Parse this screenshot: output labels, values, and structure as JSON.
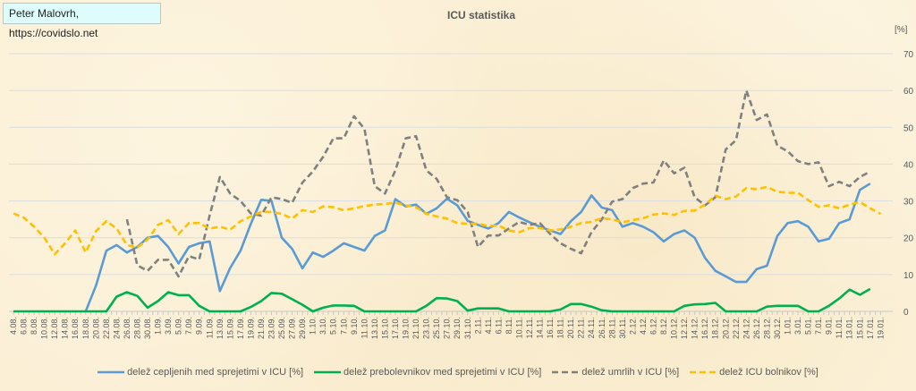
{
  "credit": "Peter Malovrh, https://covidslo.net",
  "chart_data": {
    "type": "line",
    "title": "ICU statistika",
    "ylabel": "[%]",
    "ylim": [
      0,
      70
    ],
    "yticks": [
      "0",
      "10",
      "20",
      "30",
      "40",
      "50",
      "60",
      "70"
    ],
    "y_axis_position": "right",
    "grid": "horizontal",
    "legend_position": "bottom",
    "categories": [
      "4.08.",
      "6.08.",
      "8.08.",
      "10.08.",
      "12.08.",
      "14.08.",
      "16.08.",
      "18.08.",
      "20.08.",
      "22.08.",
      "24.08.",
      "26.08.",
      "28.08.",
      "30.08.",
      "1.09.",
      "3.09.",
      "5.09.",
      "7.09.",
      "9.09.",
      "11.09.",
      "13.09.",
      "15.09.",
      "17.09.",
      "19.09.",
      "21.09.",
      "23.09.",
      "25.09.",
      "27.09.",
      "29.09.",
      "1.10.",
      "3.10.",
      "5.10.",
      "7.10.",
      "9.10.",
      "11.10.",
      "13.10.",
      "15.10.",
      "17.10.",
      "19.10.",
      "21.10.",
      "23.10.",
      "25.10.",
      "27.10.",
      "29.10.",
      "31.10.",
      "2.11.",
      "4.11.",
      "6.11.",
      "8.11.",
      "10.11.",
      "12.11.",
      "14.11.",
      "16.11.",
      "18.11.",
      "20.11.",
      "22.11.",
      "24.11.",
      "26.11.",
      "28.11.",
      "30.11.",
      "2.12.",
      "4.12.",
      "6.12.",
      "8.12.",
      "10.12.",
      "12.12.",
      "14.12.",
      "16.12.",
      "18.12.",
      "20.12.",
      "22.12.",
      "24.12.",
      "26.12.",
      "28.12.",
      "30.12.",
      "1.01.",
      "3.01.",
      "5.01.",
      "7.01.",
      "9.01.",
      "11.01.",
      "13.01.",
      "15.01.",
      "17.01.",
      "19.01."
    ],
    "series": [
      {
        "name": "delež cepljenih med sprejetimi v ICU [%]",
        "color": "#5b9bd5",
        "dash": false,
        "values": [
          null,
          null,
          null,
          null,
          null,
          null,
          null,
          0,
          7,
          16.5,
          18,
          16,
          17.5,
          20,
          20.5,
          17.5,
          13,
          17.5,
          18.5,
          19,
          5.5,
          11.8,
          16.5,
          23.8,
          30.3,
          30,
          20,
          17,
          11.7,
          16,
          14.8,
          16.5,
          18.5,
          17.5,
          16.5,
          20.5,
          22,
          30.5,
          28.5,
          29,
          26.5,
          28,
          30.6,
          28.8,
          24.6,
          23.5,
          22.5,
          24,
          27,
          25.5,
          24.2,
          23,
          22,
          21,
          24.5,
          27,
          31.5,
          28.2,
          27.5,
          23,
          24,
          23,
          21.5,
          19,
          21,
          22,
          20,
          14.5,
          11,
          9.5,
          8,
          8,
          11.5,
          12.4,
          20.5,
          24,
          24.5,
          23,
          19,
          19.7,
          24,
          25,
          33,
          34.7,
          null
        ]
      },
      {
        "name": "delež prebolevnikov med sprejetimi v ICU [%]",
        "color": "#00b050",
        "dash": false,
        "values": [
          0,
          0,
          0,
          0,
          0,
          0,
          0,
          0,
          0,
          0,
          4,
          5.2,
          4.2,
          1,
          2.8,
          5.2,
          4.4,
          4.4,
          1.5,
          0,
          0,
          0,
          0,
          1.2,
          2.8,
          5,
          4.8,
          3.3,
          1.8,
          0,
          1,
          1.6,
          1.6,
          1.5,
          0,
          0,
          0,
          0,
          0,
          0,
          1.5,
          3.6,
          3.5,
          2.8,
          0.2,
          0.8,
          0.8,
          0.8,
          0,
          0,
          0,
          0,
          0,
          0.5,
          2,
          2,
          1.3,
          0.3,
          0,
          0,
          0,
          0,
          0,
          0,
          0,
          1.5,
          1.9,
          2,
          2.3,
          0,
          0,
          0,
          0,
          1.3,
          1.5,
          1.5,
          1.5,
          0,
          0,
          1.5,
          3.5,
          5.9,
          4.5,
          6.1,
          null
        ]
      },
      {
        "name": "delež umrlih v ICU [%]",
        "color": "#808080",
        "dash": true,
        "values": [
          null,
          null,
          null,
          null,
          null,
          null,
          null,
          null,
          null,
          null,
          null,
          25,
          12.5,
          11,
          14,
          14,
          9.5,
          15,
          14.1,
          26,
          36.5,
          32,
          30,
          26.6,
          26,
          31,
          30.5,
          29.5,
          35,
          38,
          42,
          47,
          47,
          53,
          49.6,
          34,
          32,
          38.3,
          47,
          47.6,
          38.3,
          36,
          31,
          30.2,
          27,
          17.5,
          20.6,
          20.6,
          22.5,
          24.3,
          23.5,
          24,
          21,
          18.5,
          17,
          15.8,
          21.5,
          25,
          29.8,
          30.5,
          33.5,
          34.7,
          35,
          41,
          37.5,
          39,
          31,
          28.8,
          31,
          44,
          46.5,
          60,
          52,
          53.5,
          45,
          43.5,
          40.8,
          40,
          40.5,
          34,
          35.2,
          34,
          36.5,
          38,
          null
        ]
      },
      {
        "name": "delež ICU bolnikov [%]",
        "color": "#ffc000",
        "dash": true,
        "values": [
          26.6,
          25.5,
          23,
          20,
          15.5,
          18.5,
          22,
          16,
          21.8,
          24.5,
          22.5,
          18,
          17.3,
          19.5,
          23.5,
          24.8,
          21,
          24,
          24,
          22.5,
          23,
          22.2,
          24.5,
          25.8,
          27,
          27,
          26.5,
          25.2,
          27.5,
          27,
          28.5,
          28.3,
          27.5,
          28,
          28.6,
          29,
          29.2,
          29.5,
          28.8,
          28.3,
          26.5,
          25.8,
          25.2,
          24,
          23.8,
          23.8,
          23.2,
          23.3,
          22,
          21.5,
          22.6,
          22.6,
          22,
          22.3,
          23,
          24,
          24.3,
          25.3,
          25,
          24.2,
          24.8,
          25.3,
          26.3,
          26.6,
          26.2,
          27.3,
          27.4,
          29,
          31.4,
          30.5,
          31.2,
          33.5,
          33.2,
          33.8,
          32.5,
          32.2,
          32.2,
          30.2,
          28.4,
          28.8,
          28,
          29,
          29.7,
          28,
          26.5
        ]
      }
    ]
  }
}
